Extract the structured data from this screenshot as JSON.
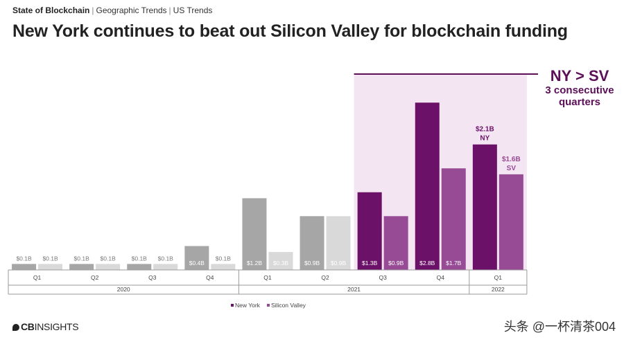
{
  "header": {
    "section": "State of Blockchain",
    "crumbs": [
      "Geographic Trends",
      "US Trends"
    ],
    "title": "New York continues to beat out Silicon Valley for blockchain funding"
  },
  "colors": {
    "ny": "#6b1268",
    "sv": "#974b95",
    "gray_dark": "#a6a6a6",
    "gray_light": "#d9d9d9",
    "highlight_bg": "#f3e5f2",
    "accent": "#5b0f57"
  },
  "chart_data": {
    "type": "bar",
    "ylim": [
      0,
      3.0
    ],
    "units": "$B",
    "categories": [
      "Q1",
      "Q2",
      "Q3",
      "Q4",
      "Q1",
      "Q2",
      "Q3",
      "Q4",
      "Q1"
    ],
    "years": [
      {
        "label": "2020",
        "start": 0,
        "count": 4
      },
      {
        "label": "2021",
        "start": 4,
        "count": 4
      },
      {
        "label": "2022",
        "start": 8,
        "count": 1
      }
    ],
    "series": [
      {
        "name": "New York",
        "values": [
          0.1,
          0.1,
          0.1,
          0.4,
          1.2,
          0.9,
          1.3,
          2.8,
          2.1
        ],
        "labels": [
          "$0.1B",
          "$0.1B",
          "$0.1B",
          "$0.4B",
          "$1.2B",
          "$0.9B",
          "$1.3B",
          "$2.8B",
          "$2.1B"
        ]
      },
      {
        "name": "Silicon Valley",
        "values": [
          0.1,
          0.1,
          0.1,
          0.1,
          0.3,
          0.9,
          0.9,
          1.7,
          1.6
        ],
        "labels": [
          "$0.1B",
          "$0.1B",
          "$0.1B",
          "$0.1B",
          "$0.3B",
          "$0.9B",
          "$0.9B",
          "$1.7B",
          "$1.6B"
        ]
      }
    ],
    "highlight": {
      "from": 6,
      "to": 8
    },
    "callout": {
      "headline": "NY > SV",
      "line1": "3 consecutive",
      "line2": "quarters"
    },
    "latest_tags": {
      "ny": "NY",
      "sv": "SV"
    },
    "legend": [
      "New York",
      "Silicon Valley"
    ]
  },
  "footer": {
    "logo_a": "CB",
    "logo_b": "INSIGHTS",
    "watermark": "头条 @一杯清茶004"
  }
}
